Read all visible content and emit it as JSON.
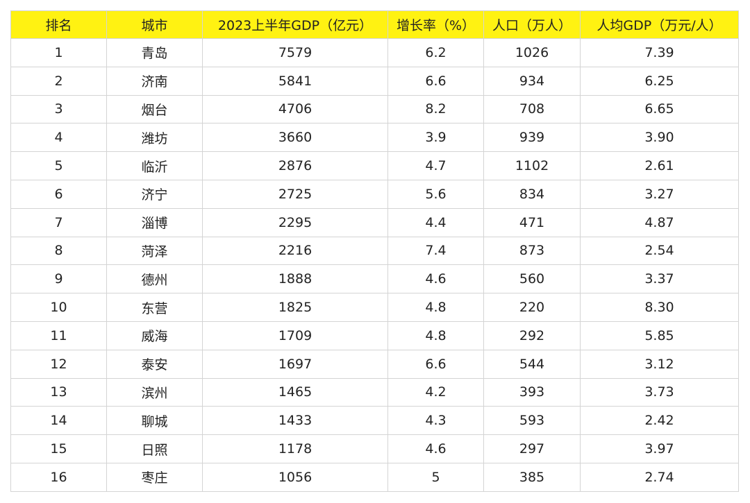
{
  "table": {
    "header_bg": "#FFF212",
    "headers": [
      "排名",
      "城市",
      "2023上半年GDP（亿元）",
      "增长率（%）",
      "人口（万人）",
      "人均GDP（万元/人）"
    ],
    "rows": [
      [
        "1",
        "青岛",
        "7579",
        "6.2",
        "1026",
        "7.39"
      ],
      [
        "2",
        "济南",
        "5841",
        "6.6",
        "934",
        "6.25"
      ],
      [
        "3",
        "烟台",
        "4706",
        "8.2",
        "708",
        "6.65"
      ],
      [
        "4",
        "潍坊",
        "3660",
        "3.9",
        "939",
        "3.90"
      ],
      [
        "5",
        "临沂",
        "2876",
        "4.7",
        "1102",
        "2.61"
      ],
      [
        "6",
        "济宁",
        "2725",
        "5.6",
        "834",
        "3.27"
      ],
      [
        "7",
        "淄博",
        "2295",
        "4.4",
        "471",
        "4.87"
      ],
      [
        "8",
        "菏泽",
        "2216",
        "7.4",
        "873",
        "2.54"
      ],
      [
        "9",
        "德州",
        "1888",
        "4.6",
        "560",
        "3.37"
      ],
      [
        "10",
        "东营",
        "1825",
        "4.8",
        "220",
        "8.30"
      ],
      [
        "11",
        "威海",
        "1709",
        "4.8",
        "292",
        "5.85"
      ],
      [
        "12",
        "泰安",
        "1697",
        "6.6",
        "544",
        "3.12"
      ],
      [
        "13",
        "滨州",
        "1465",
        "4.2",
        "393",
        "3.73"
      ],
      [
        "14",
        "聊城",
        "1433",
        "4.3",
        "593",
        "2.42"
      ],
      [
        "15",
        "日照",
        "1178",
        "4.6",
        "297",
        "3.97"
      ],
      [
        "16",
        "枣庄",
        "1056",
        "5",
        "385",
        "2.74"
      ]
    ]
  }
}
